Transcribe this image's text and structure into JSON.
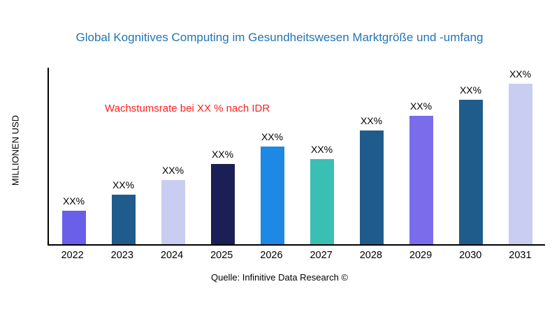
{
  "chart_data": {
    "type": "bar",
    "title": "Global Kognitives Computing im Gesundheitswesen Marktgröße und -umfang",
    "title_color": "#2274B5",
    "ylabel": "MILLIONEN USD",
    "xlabel": "",
    "categories": [
      "2022",
      "2023",
      "2024",
      "2025",
      "2026",
      "2027",
      "2028",
      "2029",
      "2030",
      "2031"
    ],
    "values": [
      21,
      31,
      40,
      50,
      61,
      53,
      71,
      80,
      90,
      100
    ],
    "bar_labels": [
      "XX%",
      "XX%",
      "XX%",
      "XX%",
      "XX%",
      "XX%",
      "XX%",
      "XX%",
      "XX%",
      "XX%"
    ],
    "bar_colors": [
      "#6A5FE8",
      "#1F5C8B",
      "#C9CDF2",
      "#1B1F55",
      "#1E88E5",
      "#3ABFB5",
      "#1F5C8B",
      "#7A6CEA",
      "#1F5C8B",
      "#C9CDF2"
    ],
    "ylim": [
      0,
      110
    ],
    "grid": false,
    "legend": "none",
    "annotation": {
      "text": "Wachstumsrate bei XX % nach IDR",
      "color": "#FF2020"
    },
    "source": "Quelle: Infinitive Data Research ©"
  }
}
